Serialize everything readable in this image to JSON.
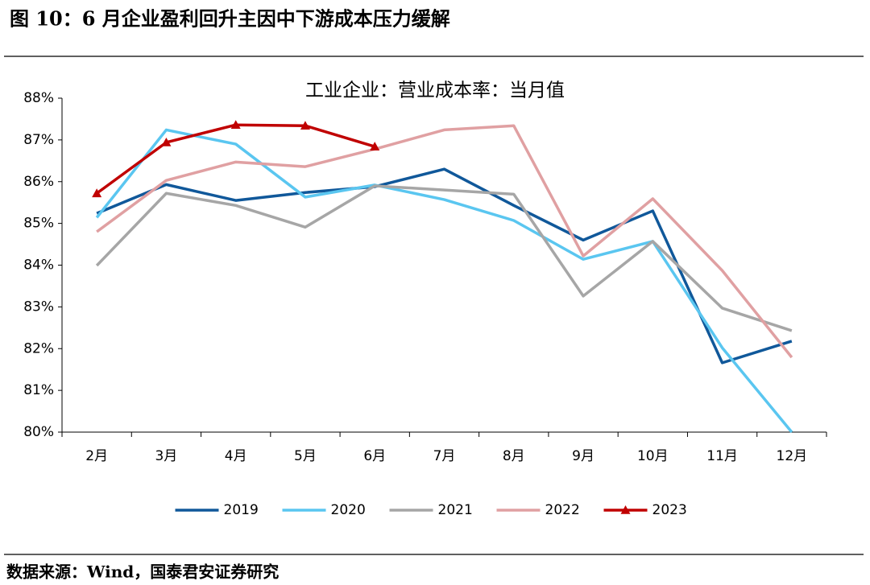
{
  "header": {
    "title": "图 10：6 月企业盈利回升主因中下游成本压力缓解"
  },
  "chart_data": {
    "type": "line",
    "title": "工业企业：营业成本率：当月值",
    "categories": [
      "2月",
      "3月",
      "4月",
      "5月",
      "6月",
      "7月",
      "8月",
      "9月",
      "10月",
      "11月",
      "12月"
    ],
    "series": [
      {
        "name": "2019",
        "color": "#10589a",
        "values": [
          85.24,
          85.93,
          85.55,
          85.74,
          85.88,
          86.3,
          85.43,
          84.6,
          85.3,
          81.66,
          82.18
        ]
      },
      {
        "name": "2020",
        "color": "#5ac6f0",
        "values": [
          85.14,
          87.24,
          86.9,
          85.63,
          85.92,
          85.57,
          85.07,
          84.14,
          84.57,
          82.02,
          80.0
        ]
      },
      {
        "name": "2021",
        "color": "#a6a6a6",
        "values": [
          83.99,
          85.72,
          85.43,
          84.91,
          85.9,
          85.8,
          85.7,
          83.26,
          84.57,
          82.97,
          82.43
        ]
      },
      {
        "name": "2022",
        "color": "#e0a0a2",
        "values": [
          84.8,
          86.03,
          86.47,
          86.36,
          86.78,
          87.24,
          87.34,
          84.22,
          85.59,
          83.87,
          81.79
        ]
      },
      {
        "name": "2023",
        "color": "#c00000",
        "marker": "triangle",
        "values": [
          85.72,
          86.94,
          87.36,
          87.34,
          86.84,
          null,
          null,
          null,
          null,
          null,
          null
        ]
      }
    ],
    "ylim": [
      80,
      88
    ],
    "yticks": [
      {
        "value": 80,
        "label": "80%"
      },
      {
        "value": 81,
        "label": "81%"
      },
      {
        "value": 82,
        "label": "82%"
      },
      {
        "value": 83,
        "label": "83%"
      },
      {
        "value": 84,
        "label": "84%"
      },
      {
        "value": 85,
        "label": "85%"
      },
      {
        "value": 86,
        "label": "86%"
      },
      {
        "value": 87,
        "label": "87%"
      },
      {
        "value": 88,
        "label": "88%"
      }
    ],
    "legend": "bottom"
  },
  "footer": {
    "source": "数据来源：Wind，国泰君安证券研究"
  }
}
